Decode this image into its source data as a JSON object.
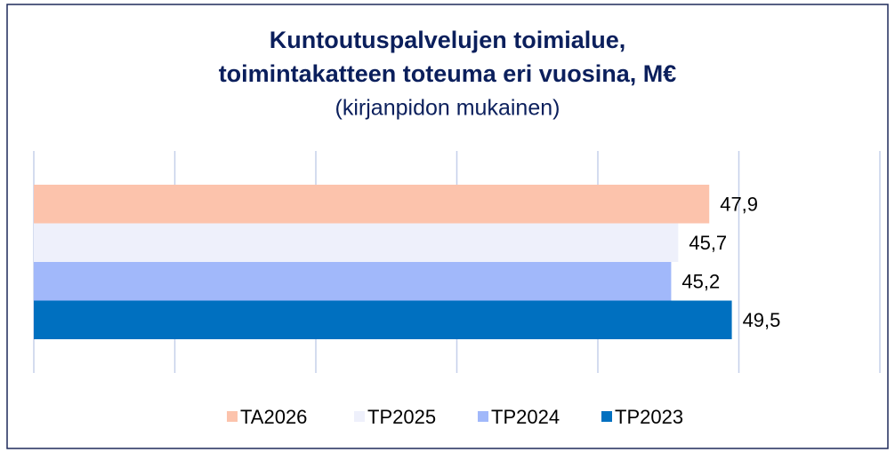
{
  "chart_data": {
    "type": "barh",
    "title": [
      "Kuntoutuspalvelujen toimialue,",
      "toimintakatteen toteuma eri vuosina, M€"
    ],
    "subtitle": "(kirjanpidon mukainen)",
    "categories": [
      null
    ],
    "series": [
      {
        "name": "TA2026",
        "color": "#fcc3ac",
        "values": [
          47.9
        ],
        "value_labels": [
          "47,9"
        ]
      },
      {
        "name": "TP2025",
        "color": "#eef0fb",
        "values": [
          45.7
        ],
        "value_labels": [
          "45,7"
        ]
      },
      {
        "name": "TP2024",
        "color": "#a1b8fa",
        "values": [
          45.2
        ],
        "value_labels": [
          "45,2"
        ]
      },
      {
        "name": "TP2023",
        "color": "#0070c0",
        "values": [
          49.5
        ],
        "value_labels": [
          "49,5"
        ]
      }
    ],
    "xlim": [
      0,
      60
    ],
    "xticks": [
      0,
      10,
      20,
      30,
      40,
      50,
      60
    ],
    "grid": true,
    "legend": "bottom"
  }
}
